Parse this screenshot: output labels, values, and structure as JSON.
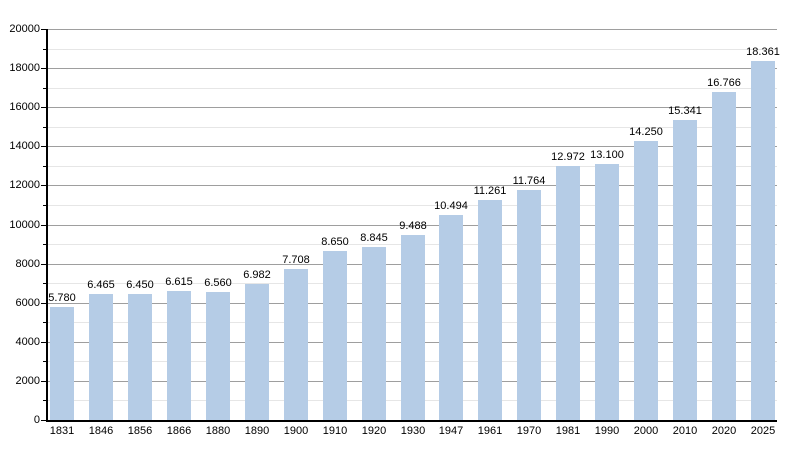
{
  "chart_data": {
    "type": "bar",
    "title": "",
    "xlabel": "",
    "ylabel": "",
    "categories": [
      "1831",
      "1846",
      "1856",
      "1866",
      "1880",
      "1890",
      "1900",
      "1910",
      "1920",
      "1930",
      "1947",
      "1961",
      "1970",
      "1981",
      "1990",
      "2000",
      "2010",
      "2020",
      "2025"
    ],
    "values": [
      5780,
      6465,
      6450,
      6615,
      6560,
      6982,
      7708,
      8650,
      8845,
      9488,
      10494,
      11261,
      11764,
      12972,
      13100,
      14250,
      15341,
      16766,
      18361
    ],
    "value_labels": [
      "5.780",
      "6.465",
      "6.450",
      "6.615",
      "6.560",
      "6.982",
      "7.708",
      "8.650",
      "8.845",
      "9.488",
      "10.494",
      "11.261",
      "11.764",
      "12.972",
      "13.100",
      "14.250",
      "15.341",
      "16.766",
      "18.361"
    ],
    "ylim": [
      0,
      20000
    ],
    "y_major_step": 2000,
    "y_minor_step": 1000,
    "y_tick_labels": [
      "0",
      "2000",
      "4000",
      "6000",
      "8000",
      "10000",
      "12000",
      "14000",
      "16000",
      "18000",
      "20000"
    ],
    "grid": "horizontal major+minor",
    "legend": "none",
    "colors": {
      "bar": "#b5cce6",
      "grid_major": "#9e9e9e",
      "grid_minor": "#e6e6e6",
      "axis": "#000000",
      "text": "#000000"
    }
  }
}
